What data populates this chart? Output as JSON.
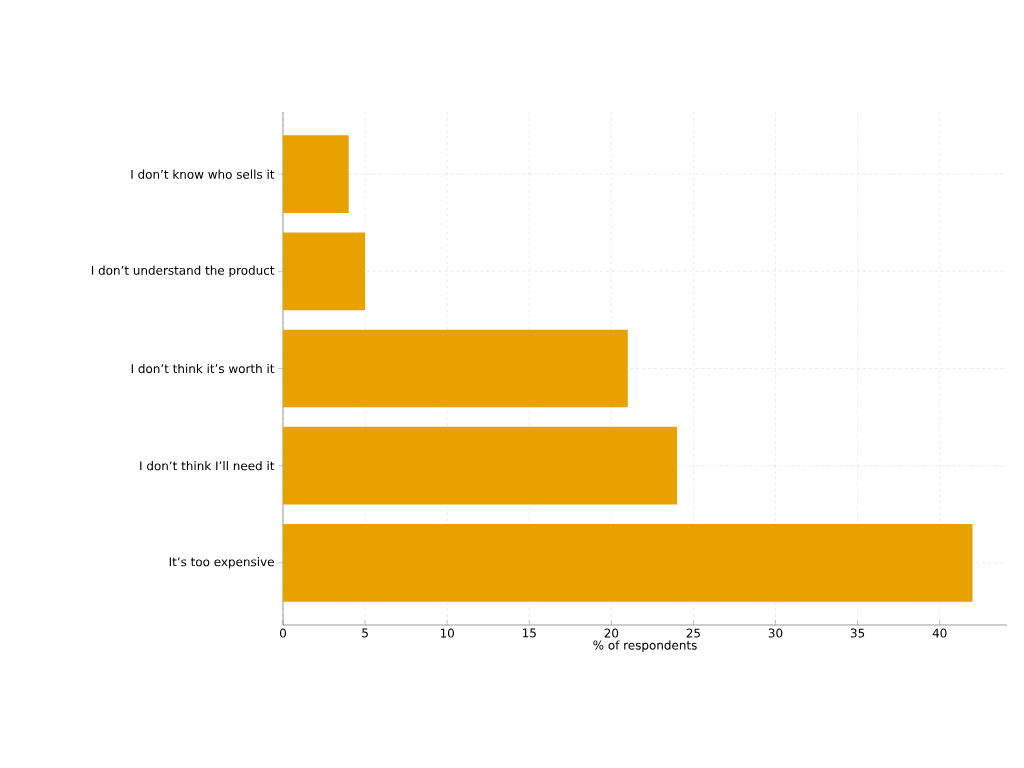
{
  "chart_data": {
    "type": "bar",
    "orientation": "horizontal",
    "xlabel": "% of respondents",
    "categories": [
      "I don’t know who sells it",
      "I don’t understand the product",
      "I don’t think it’s worth it",
      "I don’t think I’ll need it",
      "It’s too expensive"
    ],
    "values": [
      4,
      5,
      21,
      24,
      42
    ],
    "color": "#e8a200",
    "xlim": [
      0,
      44.1
    ],
    "xticks": [
      0,
      5,
      10,
      15,
      20,
      25,
      30,
      35,
      40
    ],
    "grid": true
  }
}
